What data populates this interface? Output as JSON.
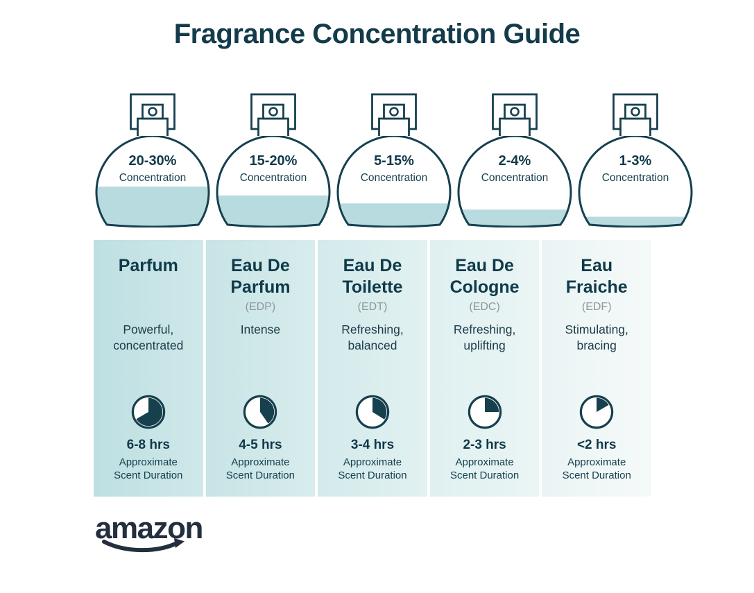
{
  "page": {
    "title": "Fragrance Concentration Guide"
  },
  "colors": {
    "ink": "#14404f",
    "stroke": "#16404e",
    "header_ink": "#0f3a49",
    "abbr_gray": "#8d979a",
    "liquid": "#b7dbdf",
    "logo_ink": "#232f3e",
    "column_backgrounds": [
      [
        "#bedfe2",
        "#cfe8e9"
      ],
      [
        "#c8e4e6",
        "#d8ecec"
      ],
      [
        "#d3eaeb",
        "#e2f1f1"
      ],
      [
        "#dff0f0",
        "#ebf5f5"
      ],
      [
        "#eaf4f4",
        "#f5faf9"
      ]
    ]
  },
  "bottles": [
    {
      "percent": "20-30%",
      "label": "Concentration",
      "fill_level": 0.43
    },
    {
      "percent": "15-20%",
      "label": "Concentration",
      "fill_level": 0.33
    },
    {
      "percent": "5-15%",
      "label": "Concentration",
      "fill_level": 0.24
    },
    {
      "percent": "2-4%",
      "label": "Concentration",
      "fill_level": 0.17
    },
    {
      "percent": "1-3%",
      "label": "Concentration",
      "fill_level": 0.09
    }
  ],
  "columns": [
    {
      "name": "Parfum",
      "abbr": "",
      "description": "Powerful,\nconcentrated",
      "clock_deg": 240,
      "duration": "6-8 hrs",
      "duration_note": "Approximate\nScent Duration"
    },
    {
      "name": "Eau De\nParfum",
      "abbr": "(EDP)",
      "description": "Intense",
      "clock_deg": 145,
      "duration": "4-5 hrs",
      "duration_note": "Approximate\nScent Duration"
    },
    {
      "name": "Eau De\nToilette",
      "abbr": "(EDT)",
      "description": "Refreshing,\nbalanced",
      "clock_deg": 122,
      "duration": "3-4 hrs",
      "duration_note": "Approximate\nScent Duration"
    },
    {
      "name": "Eau De\nCologne",
      "abbr": "(EDC)",
      "description": "Refreshing,\nuplifting",
      "clock_deg": 90,
      "duration": "2-3 hrs",
      "duration_note": "Approximate\nScent Duration"
    },
    {
      "name": "Eau\nFraiche",
      "abbr": "(EDF)",
      "description": "Stimulating,\nbracing",
      "clock_deg": 60,
      "duration": "<2 hrs",
      "duration_note": "Approximate\nScent Duration"
    }
  ],
  "footer": {
    "logo_text": "amazon"
  }
}
